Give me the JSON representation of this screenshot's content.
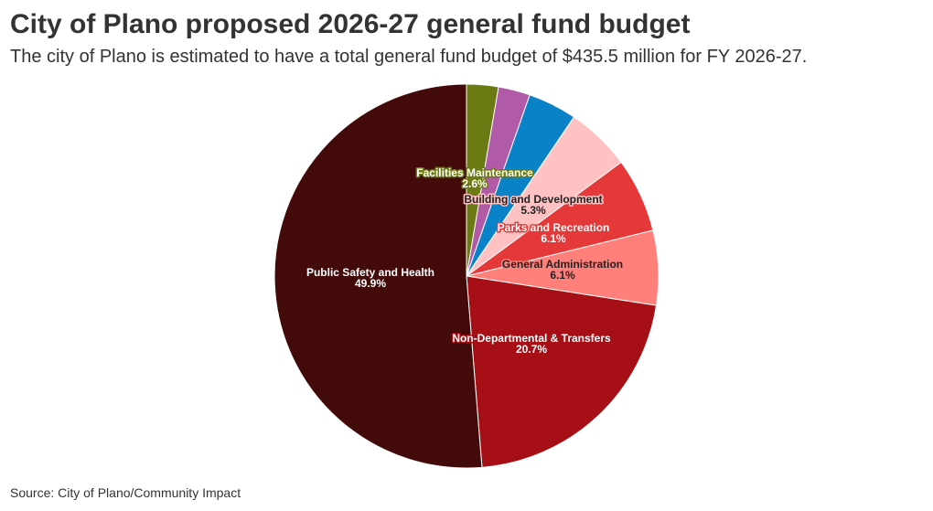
{
  "title": "City of Plano proposed 2026-27 general fund budget",
  "subtitle": "The city of Plano is estimated to have a total general fund budget of $435.5 million for FY 2026-27.",
  "source": "Source: City of Plano/Community Impact",
  "chart_data": {
    "type": "pie",
    "title": "City of Plano proposed 2026-27 general fund budget",
    "start_angle_deg": 0,
    "direction": "clockwise",
    "slices": [
      {
        "name": "Facilities Maintenance",
        "value": 2.6,
        "label": "2.6%",
        "color": "#6b7a12",
        "label_color": "#ffffff",
        "label_halo": "#6b7a12",
        "show_label": true
      },
      {
        "name": "",
        "value": 2.6,
        "label": "",
        "color": "#b05aa8",
        "show_label": false
      },
      {
        "name": "",
        "value": 4.0,
        "label": "",
        "color": "#0a82c8",
        "show_label": false
      },
      {
        "name": "Building and Development",
        "value": 5.3,
        "label": "5.3%",
        "color": "#ffc2c2",
        "label_color": "#222222",
        "label_halo": "#ffc2c2",
        "show_label": true
      },
      {
        "name": "Parks and Recreation",
        "value": 6.1,
        "label": "6.1%",
        "color": "#e53838",
        "label_color": "#ffffff",
        "label_halo": "#e53838",
        "show_label": true
      },
      {
        "name": "General Administration",
        "value": 6.1,
        "label": "6.1%",
        "color": "#ff7f7a",
        "label_color": "#222222",
        "label_halo": "#ff7f7a",
        "show_label": true
      },
      {
        "name": "Non-Departmental & Transfers",
        "value": 20.7,
        "label": "20.7%",
        "color": "#a50f15",
        "label_color": "#ffffff",
        "label_halo": "#a50f15",
        "show_label": true
      },
      {
        "name": "Public Safety and Health",
        "value": 49.9,
        "label": "49.9%",
        "color": "#430a0a",
        "label_color": "#ffffff",
        "label_halo": "#430a0a",
        "show_label": true
      }
    ]
  }
}
